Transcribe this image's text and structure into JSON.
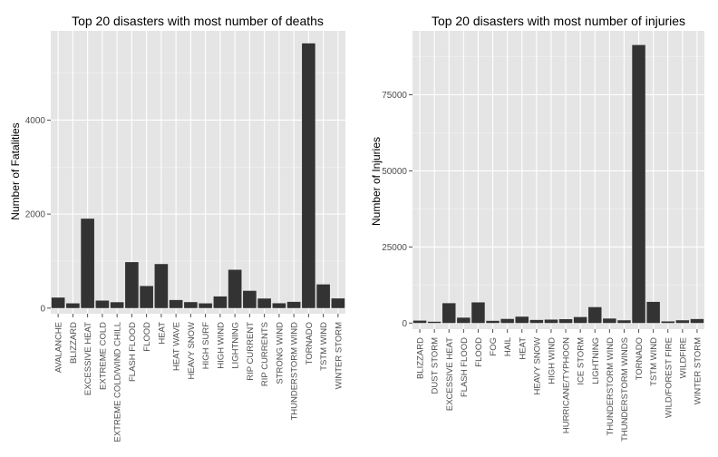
{
  "colors": {
    "panel": "#e5e5e5",
    "grid_major": "#ffffff",
    "grid_minor": "#f2f2f2",
    "bar": "#333333",
    "tick": "#4d4d4d"
  },
  "chart_data": [
    {
      "type": "bar",
      "title": "Top 20 disasters with most number of deaths",
      "xlabel": "",
      "ylabel": "Number of Fatalities",
      "ylim": [
        -120,
        5900
      ],
      "yticks": [
        0,
        2000,
        4000
      ],
      "grid": true,
      "categories": [
        "AVALANCHE",
        "BLIZZARD",
        "EXCESSIVE HEAT",
        "EXTREME COLD",
        "EXTREME COLD/WIND CHILL",
        "FLASH FLOOD",
        "FLOOD",
        "HEAT",
        "HEAT WAVE",
        "HEAVY SNOW",
        "HIGH SURF",
        "HIGH WIND",
        "LIGHTNING",
        "RIP CURRENT",
        "RIP CURRENTS",
        "STRONG WIND",
        "THUNDERSTORM WIND",
        "TORNADO",
        "TSTM WIND",
        "WINTER STORM"
      ],
      "values": [
        224,
        101,
        1903,
        160,
        125,
        978,
        470,
        937,
        172,
        127,
        101,
        248,
        816,
        368,
        204,
        103,
        133,
        5633,
        504,
        206
      ]
    },
    {
      "type": "bar",
      "title": "Top 20 disasters with most number of injuries",
      "xlabel": "",
      "ylabel": "Number of Injuries",
      "ylim": [
        -2000,
        96000
      ],
      "yticks": [
        0,
        25000,
        50000,
        75000
      ],
      "grid": true,
      "categories": [
        "BLIZZARD",
        "DUST STORM",
        "EXCESSIVE HEAT",
        "FLASH FLOOD",
        "FLOOD",
        "FOG",
        "HAIL",
        "HEAT",
        "HEAVY SNOW",
        "HIGH WIND",
        "HURRICANE/TYPHOON",
        "ICE STORM",
        "LIGHTNING",
        "THUNDERSTORM WIND",
        "THUNDERSTORM WINDS",
        "TORNADO",
        "TSTM WIND",
        "WILD/FOREST FIRE",
        "WILDFIRE",
        "WINTER STORM"
      ],
      "values": [
        805,
        440,
        6525,
        1777,
        6789,
        734,
        1361,
        2100,
        1021,
        1137,
        1275,
        1975,
        5230,
        1488,
        908,
        91346,
        6957,
        545,
        911,
        1321
      ]
    }
  ]
}
